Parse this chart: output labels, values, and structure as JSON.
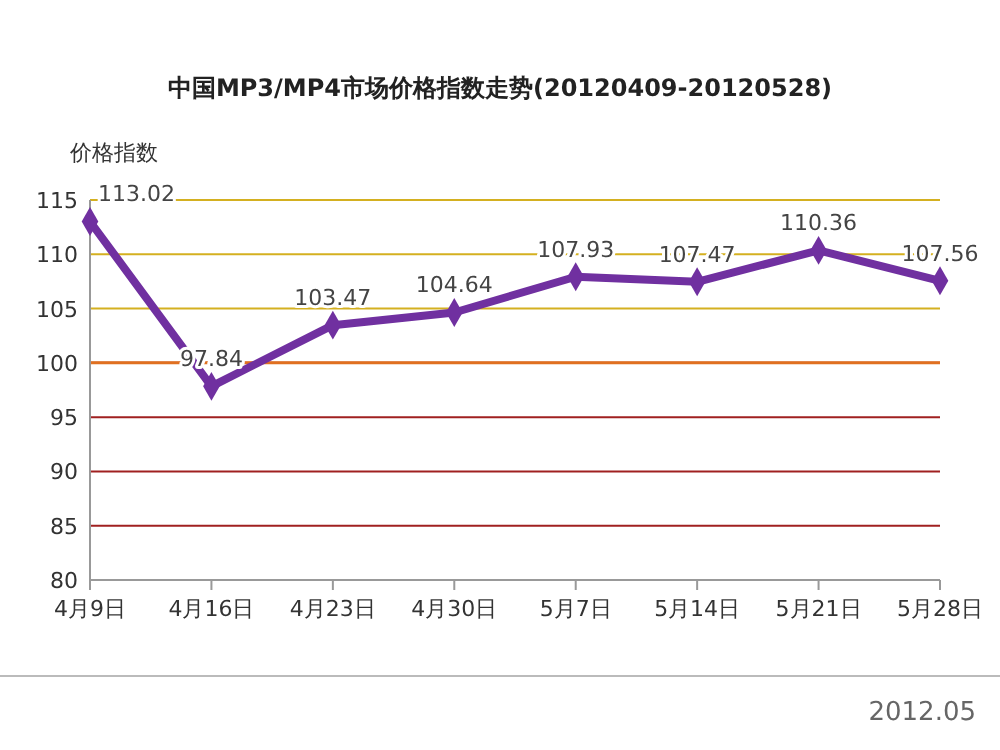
{
  "chart_data": {
    "type": "line",
    "title": "中国MP3/MP4市场价格指数走势(20120409-20120528)",
    "ylabel": "价格指数",
    "categories": [
      "4月9日",
      "4月16日",
      "4月23日",
      "4月30日",
      "5月7日",
      "5月14日",
      "5月21日",
      "5月28日"
    ],
    "series": [
      {
        "color": "#7030a0",
        "values": [
          113.02,
          97.84,
          103.47,
          104.64,
          107.93,
          107.47,
          110.36,
          107.56
        ]
      }
    ],
    "ylim": [
      80,
      115
    ],
    "yticks": [
      80,
      85,
      90,
      95,
      100,
      105,
      110,
      115
    ],
    "grid": "y",
    "marker": "diamond",
    "line_style": "solid",
    "data_labels": true,
    "ref_lines": [
      {
        "axis": "y",
        "value": 100,
        "color": "#e07020"
      }
    ],
    "annotations": [
      "2012.05"
    ]
  }
}
